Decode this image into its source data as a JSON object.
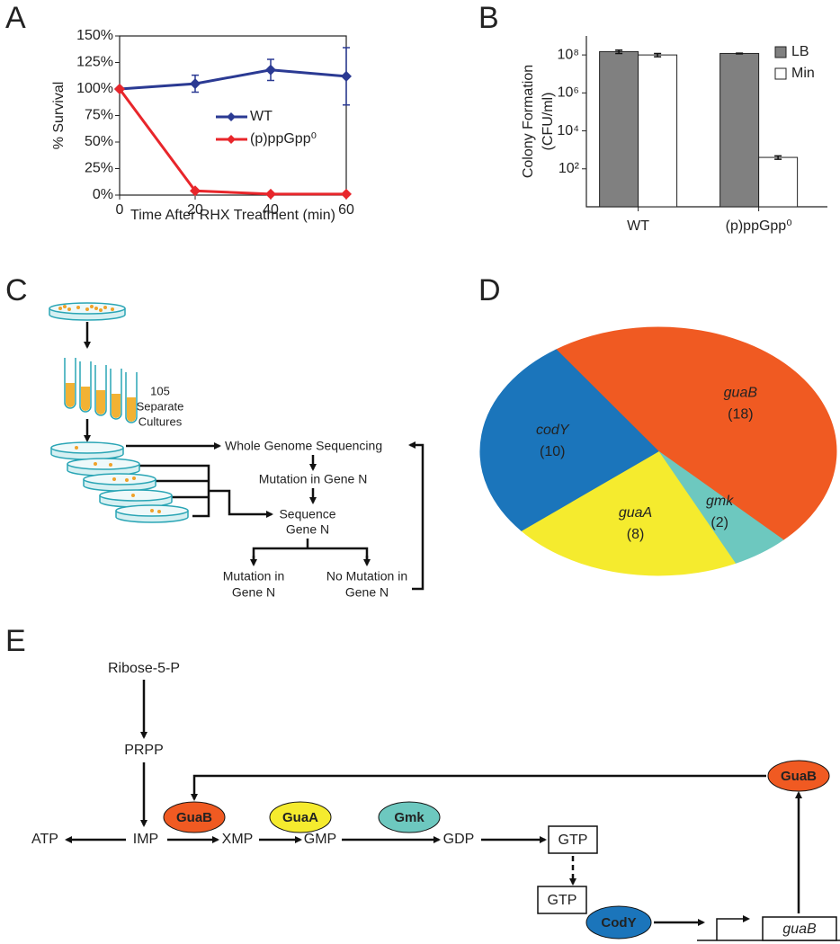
{
  "panel_labels": [
    "A",
    "B",
    "C",
    "D",
    "E"
  ],
  "chart_data": [
    {
      "type": "line",
      "x_label": "Time After RHX Treatment (min)",
      "y_label": "% Survival",
      "x": [
        0,
        20,
        40,
        60
      ],
      "xlim": [
        0,
        60
      ],
      "xticks": [
        0,
        20,
        40,
        60
      ],
      "ylim": [
        0,
        150
      ],
      "yticks": [
        {
          "value": 0,
          "label": "0%"
        },
        {
          "value": 25,
          "label": "25%"
        },
        {
          "value": 50,
          "label": "50%"
        },
        {
          "value": 75,
          "label": "75%"
        },
        {
          "value": 100,
          "label": "100%"
        },
        {
          "value": 125,
          "label": "125%"
        },
        {
          "value": 150,
          "label": "150%"
        }
      ],
      "series": [
        {
          "name": "WT",
          "color": "#2b3a93",
          "values": [
            100,
            105,
            118,
            112
          ],
          "errors": [
            0,
            8,
            10,
            27
          ]
        },
        {
          "name": "(p)ppGpp⁰",
          "color": "#e8262b",
          "values": [
            100,
            4,
            1,
            1
          ]
        }
      ]
    },
    {
      "type": "bar",
      "log_scale": true,
      "y_label": [
        "Colony Formation",
        "(CFU/ml)"
      ],
      "categories": [
        "WT",
        "(p)ppGpp⁰"
      ],
      "ylim": [
        1,
        1000000000
      ],
      "yticks": [
        {
          "value": 100,
          "label": "10²"
        },
        {
          "value": 10000,
          "label": "10⁴"
        },
        {
          "value": 1000000,
          "label": "10⁶"
        },
        {
          "value": 100000000,
          "label": "10⁸"
        }
      ],
      "legend": "upper right",
      "series": [
        {
          "name": "LB",
          "color": "#808080",
          "values": [
            150000000,
            120000000
          ],
          "errors": [
            30000000,
            5000000
          ]
        },
        {
          "name": "Min",
          "color": "#ffffff",
          "values": [
            100000000,
            400
          ],
          "errors": [
            20000000,
            80
          ]
        }
      ]
    },
    {
      "type": "pie",
      "labels": [
        "guaB",
        "gmk",
        "guaA",
        "codY"
      ],
      "values": [
        18,
        2,
        8,
        10
      ],
      "value_labels": [
        "(18)",
        "(2)",
        "(8)",
        "(10)"
      ],
      "colors": [
        "#f05a22",
        "#6dc8bf",
        "#f5eb2e",
        "#1b75bb"
      ]
    }
  ],
  "diagram_c": {
    "cultures_count": "105",
    "cultures_label": [
      "Separate",
      "Cultures"
    ],
    "step_wgs": "Whole Genome Sequencing",
    "step_mutation": "Mutation in Gene N",
    "step_sequence": [
      "Sequence",
      "Gene N"
    ],
    "outcome_mutation": [
      "Mutation in",
      "Gene N"
    ],
    "outcome_no_mutation": [
      "No Mutation in",
      "Gene N"
    ]
  },
  "diagram_e": {
    "metabolites": {
      "ribose": "Ribose-5-P",
      "prpp": "PRPP",
      "atp": "ATP",
      "imp": "IMP",
      "xmp": "XMP",
      "gmp": "GMP",
      "gdp": "GDP",
      "gtp_1": "GTP",
      "gtp_2": "GTP"
    },
    "enzymes": {
      "guab": "GuaB",
      "guaa": "GuaA",
      "gmk": "Gmk",
      "cody": "CodY",
      "guab_product": "GuaB"
    },
    "gene": "guaB"
  }
}
